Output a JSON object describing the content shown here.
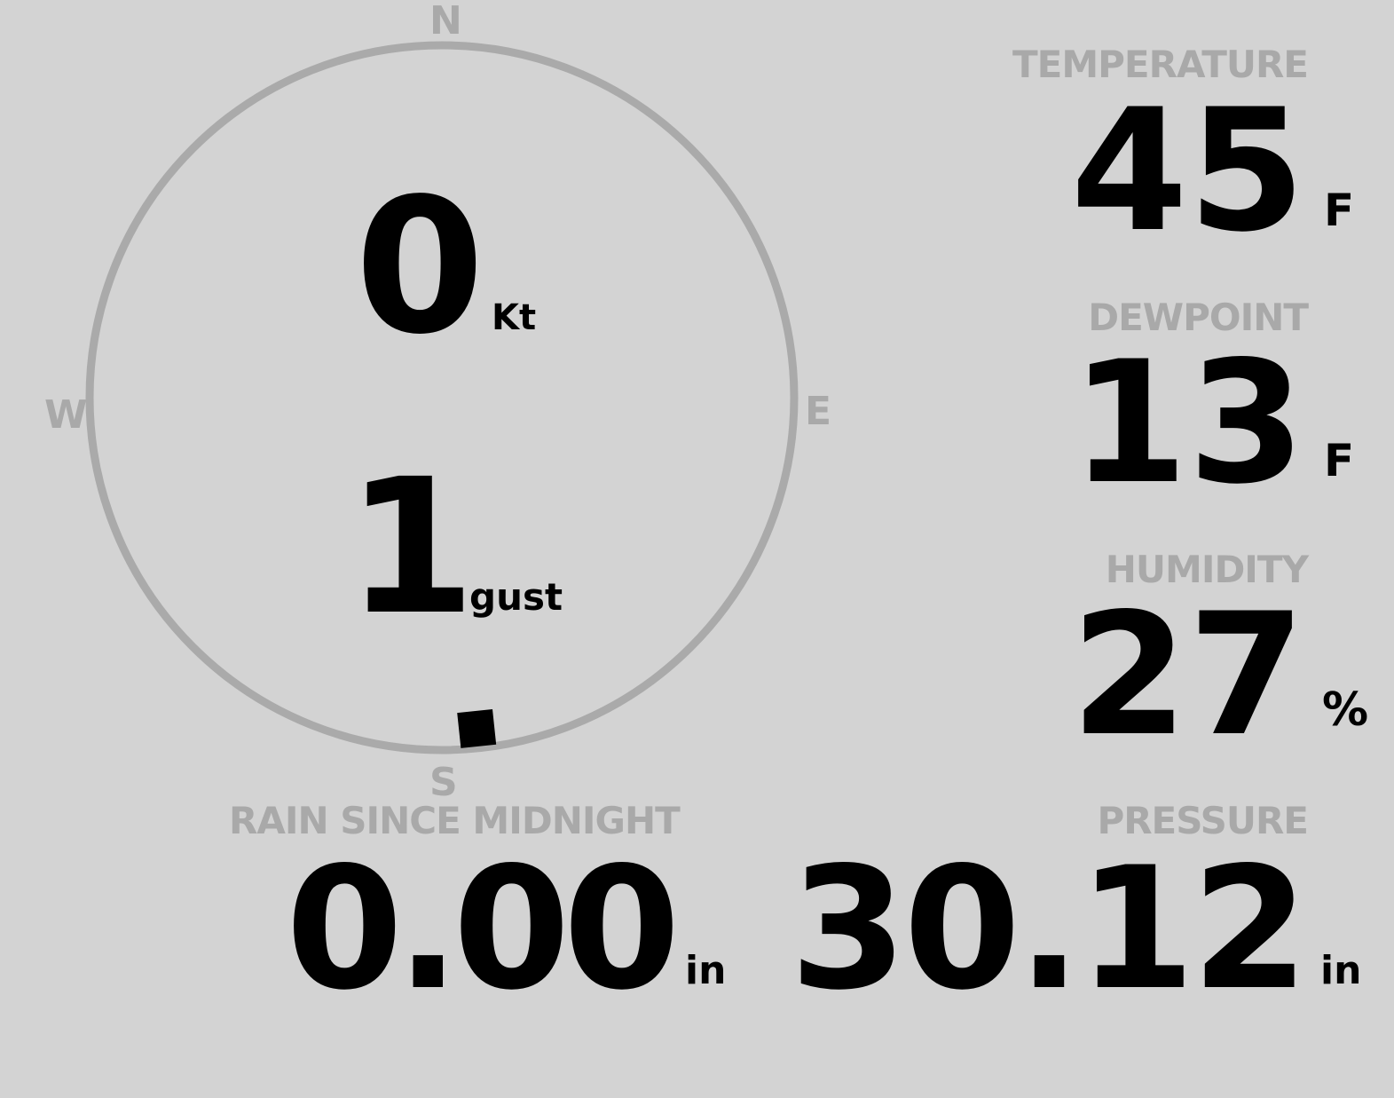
{
  "colors": {
    "background": "#d3d3d3",
    "label": "#a9a9a9",
    "value": "#000000",
    "ring": "#aaaaaa"
  },
  "wind": {
    "speed": "0",
    "speed_unit": "Kt",
    "gust": "1",
    "gust_unit": "gust",
    "direction_deg": 174,
    "cardinals": {
      "n": "N",
      "e": "E",
      "s": "S",
      "w": "W"
    }
  },
  "temperature": {
    "label": "TEMPERATURE",
    "value": "45",
    "unit": "F"
  },
  "dewpoint": {
    "label": "DEWPOINT",
    "value": "13",
    "unit": "F"
  },
  "humidity": {
    "label": "HUMIDITY",
    "value": "27",
    "unit": "%"
  },
  "rain": {
    "label": "RAIN SINCE MIDNIGHT",
    "value": "0.00",
    "unit": "in"
  },
  "pressure": {
    "label": "PRESSURE",
    "value": "30.12",
    "unit": "in"
  }
}
